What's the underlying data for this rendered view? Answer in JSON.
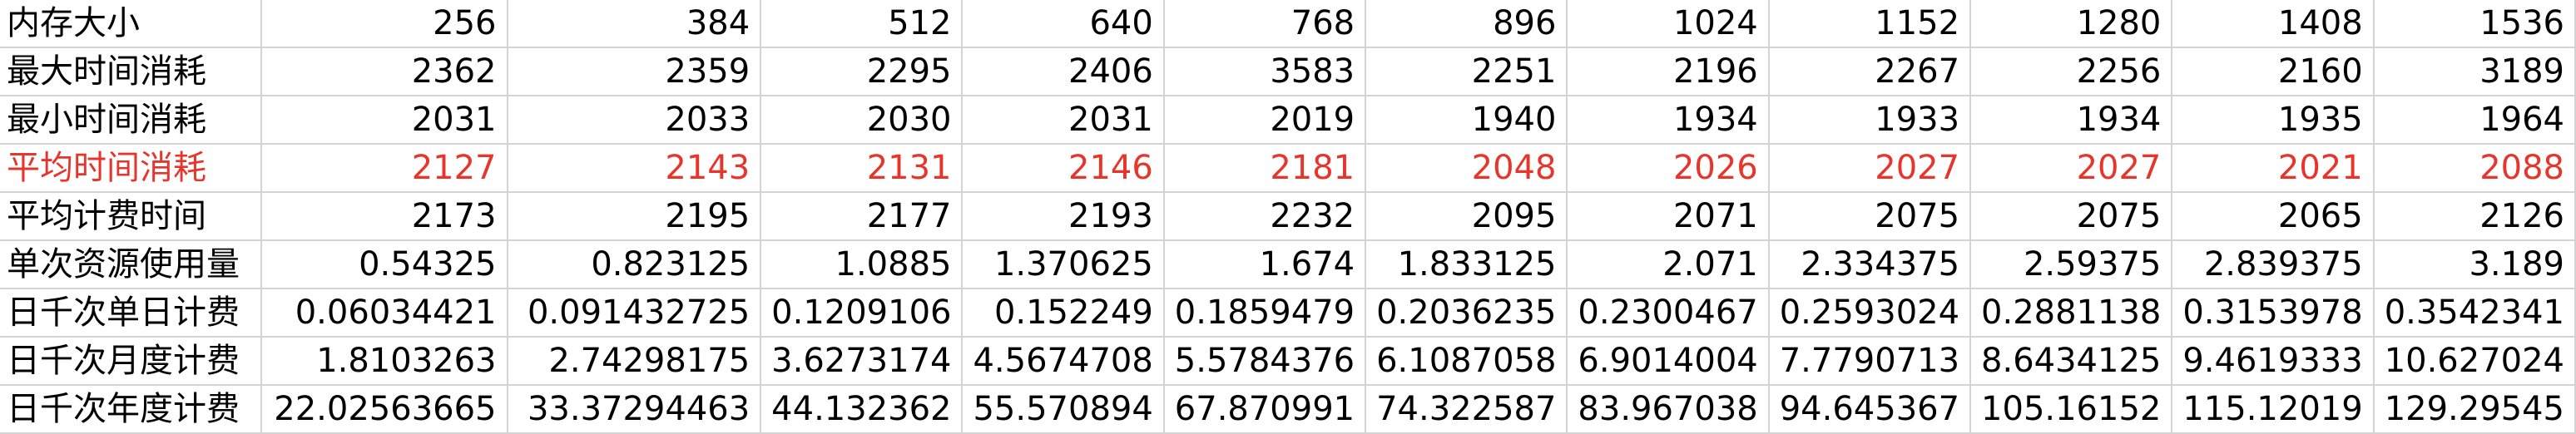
{
  "rows": [
    {
      "label": "内存大小",
      "values": [
        "256",
        "384",
        "512",
        "640",
        "768",
        "896",
        "1024",
        "1152",
        "1280",
        "1408",
        "1536"
      ],
      "highlight": false
    },
    {
      "label": "最大时间消耗",
      "values": [
        "2362",
        "2359",
        "2295",
        "2406",
        "3583",
        "2251",
        "2196",
        "2267",
        "2256",
        "2160",
        "3189"
      ],
      "highlight": false
    },
    {
      "label": "最小时间消耗",
      "values": [
        "2031",
        "2033",
        "2030",
        "2031",
        "2019",
        "1940",
        "1934",
        "1933",
        "1934",
        "1935",
        "1964"
      ],
      "highlight": false
    },
    {
      "label": "平均时间消耗",
      "values": [
        "2127",
        "2143",
        "2131",
        "2146",
        "2181",
        "2048",
        "2026",
        "2027",
        "2027",
        "2021",
        "2088"
      ],
      "highlight": true
    },
    {
      "label": "平均计费时间",
      "values": [
        "2173",
        "2195",
        "2177",
        "2193",
        "2232",
        "2095",
        "2071",
        "2075",
        "2075",
        "2065",
        "2126"
      ],
      "highlight": false
    },
    {
      "label": "单次资源使用量",
      "values": [
        "0.54325",
        "0.823125",
        "1.0885",
        "1.370625",
        "1.674",
        "1.833125",
        "2.071",
        "2.334375",
        "2.59375",
        "2.839375",
        "3.189"
      ],
      "highlight": false
    },
    {
      "label": "日千次单日计费",
      "values": [
        "0.06034421",
        "0.091432725",
        "0.1209106",
        "0.152249",
        "0.1859479",
        "0.2036235",
        "0.2300467",
        "0.2593024",
        "0.2881138",
        "0.3153978",
        "0.3542341"
      ],
      "highlight": false
    },
    {
      "label": "日千次月度计费",
      "values": [
        "1.8103263",
        "2.74298175",
        "3.6273174",
        "4.5674708",
        "5.5784376",
        "6.1087058",
        "6.9014004",
        "7.7790713",
        "8.6434125",
        "9.4619333",
        "10.627024"
      ],
      "highlight": false
    },
    {
      "label": "日千次年度计费",
      "values": [
        "22.02563665",
        "33.37294463",
        "44.132362",
        "55.570894",
        "67.870991",
        "74.322587",
        "83.967038",
        "94.645367",
        "105.16152",
        "115.12019",
        "129.29545"
      ],
      "highlight": false
    }
  ],
  "colors": {
    "highlight": "#e8352b",
    "gridline": "#d4d4d4"
  }
}
